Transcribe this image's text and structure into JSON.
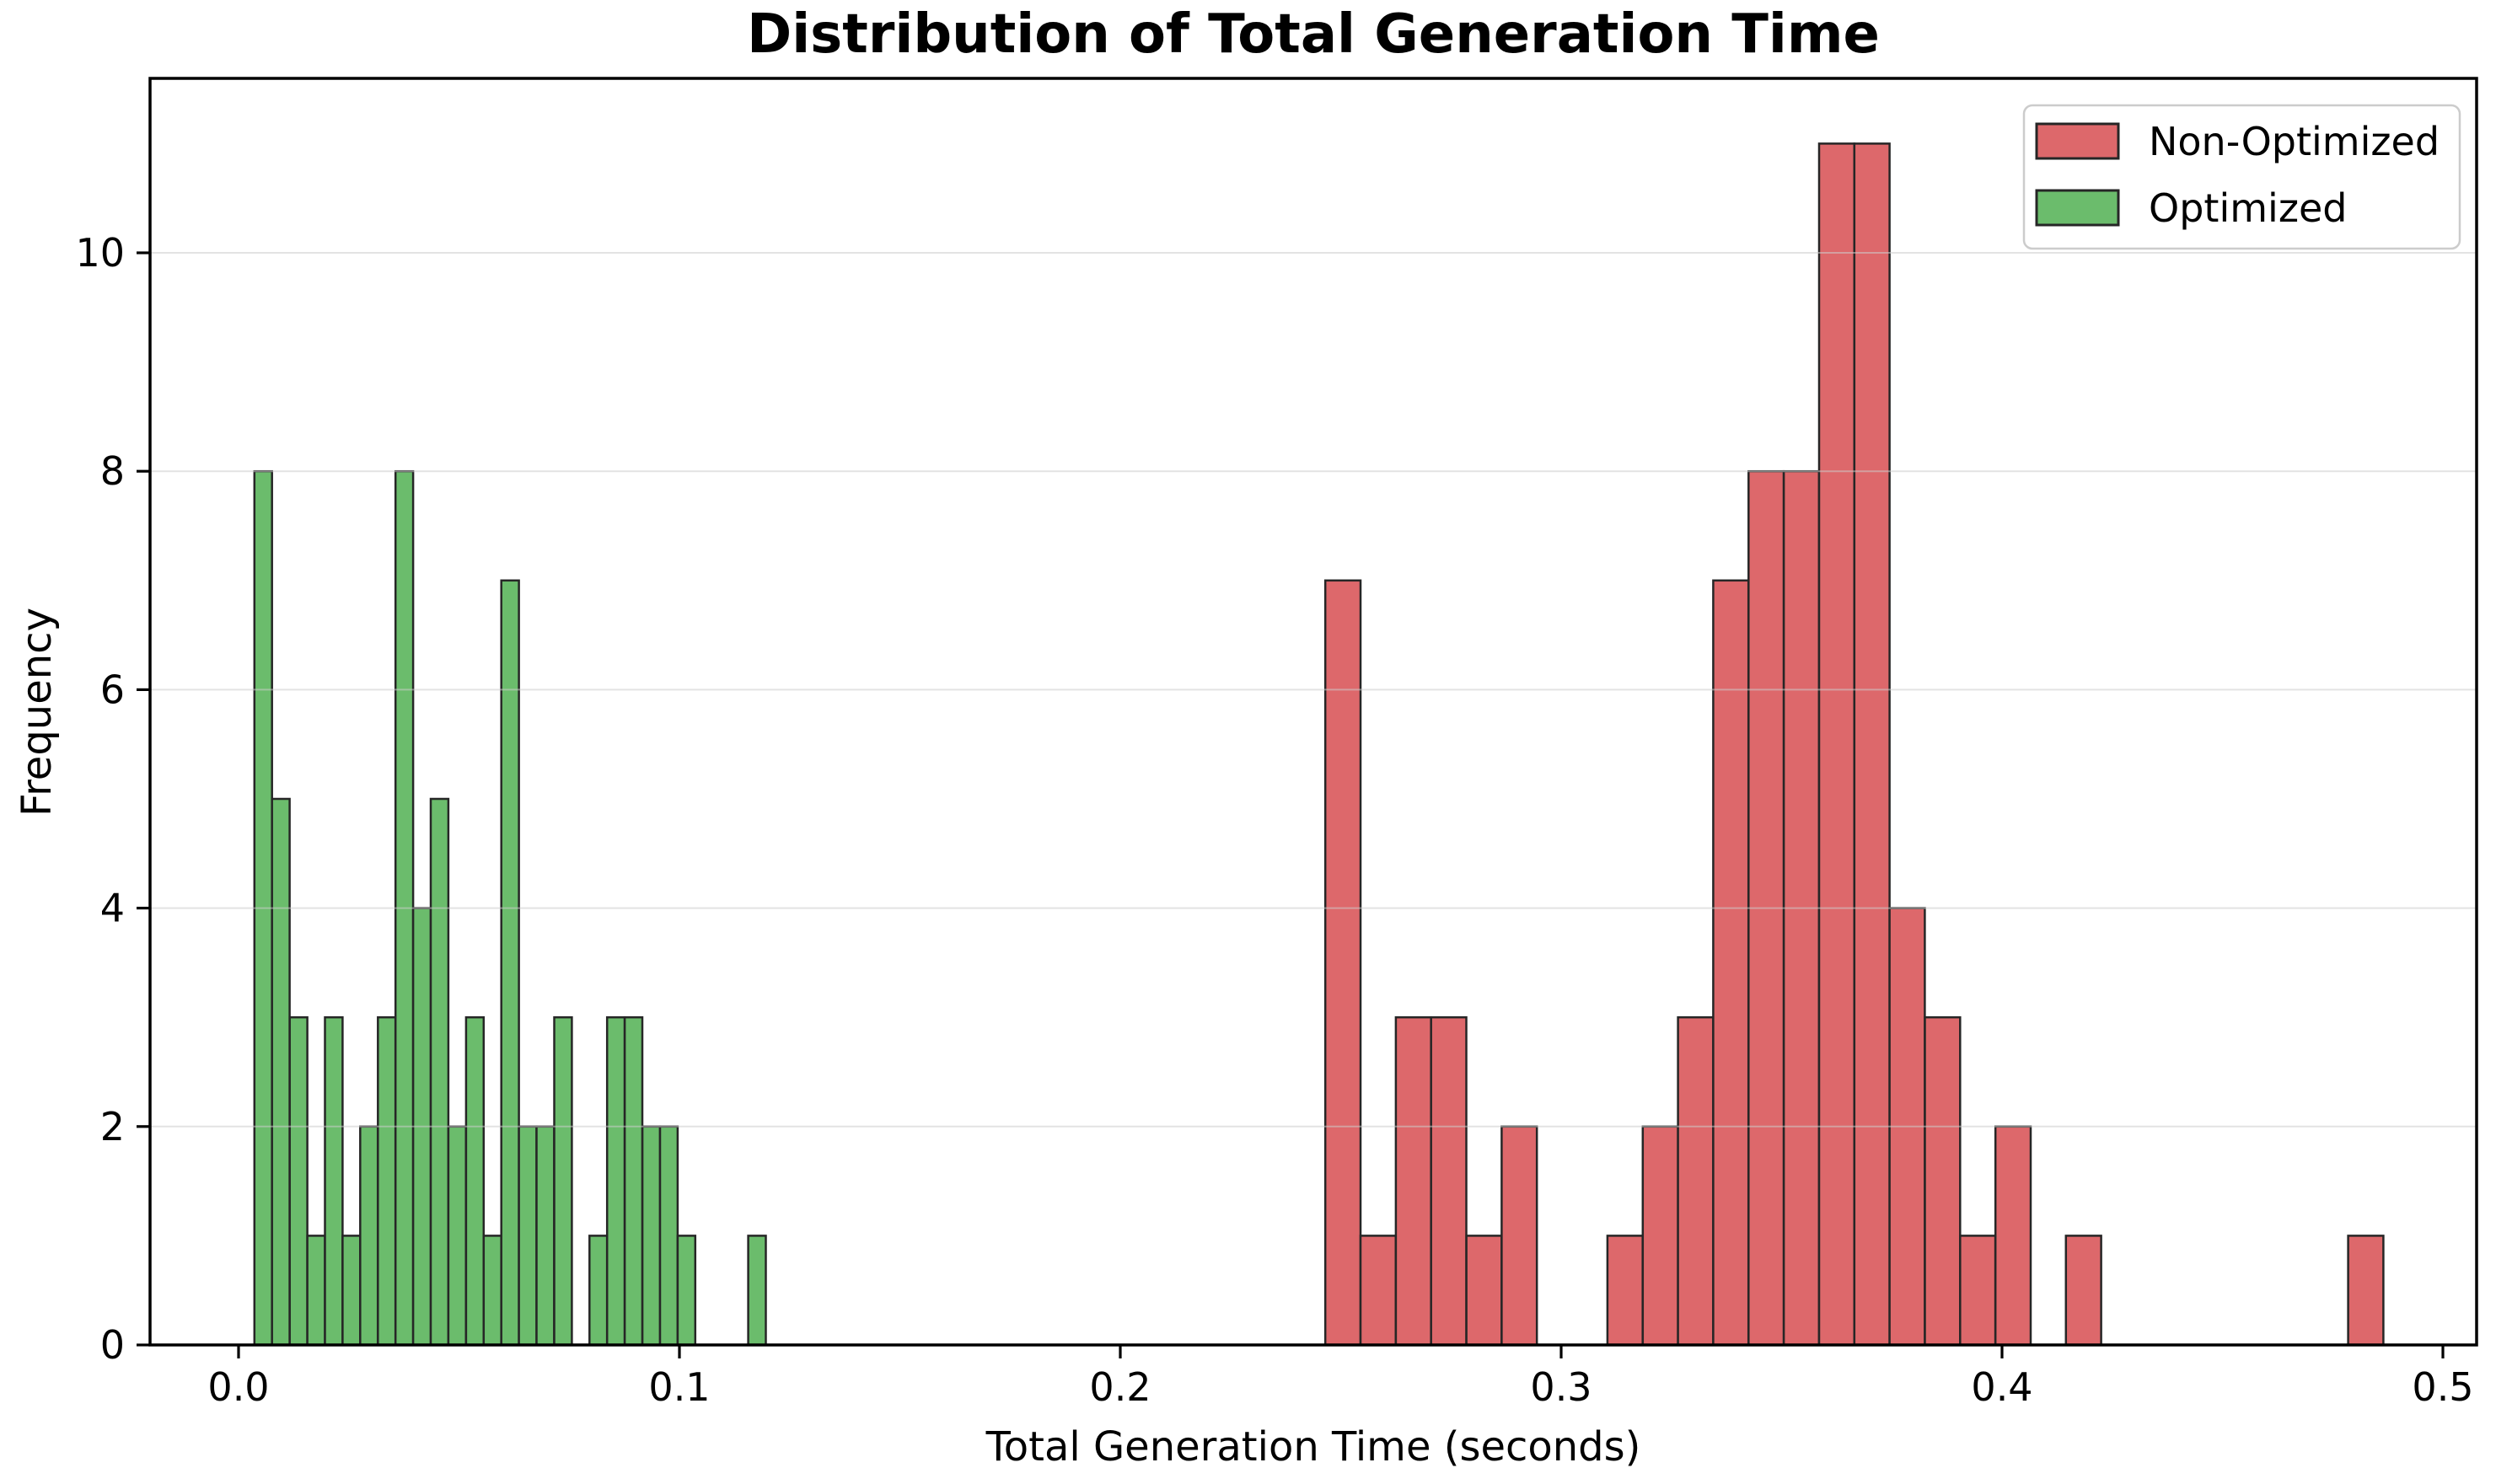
{
  "chart_data": {
    "type": "histogram",
    "title": "Distribution of Total Generation Time",
    "xlabel": "Total Generation Time (seconds)",
    "ylabel": "Frequency",
    "xlim": [
      -0.02,
      0.508
    ],
    "ylim": [
      0,
      11.6
    ],
    "xticks": [
      0.0,
      0.1,
      0.2,
      0.3,
      0.4,
      0.5
    ],
    "xtick_labels": [
      "0.0",
      "0.1",
      "0.2",
      "0.3",
      "0.4",
      "0.5"
    ],
    "yticks": [
      0,
      2,
      4,
      6,
      8,
      10
    ],
    "ytick_labels": [
      "0",
      "2",
      "4",
      "6",
      "8",
      "10"
    ],
    "grid": {
      "axis": "y",
      "color": "#cccccc",
      "opacity": 0.55,
      "drawn_above_bars": true
    },
    "legend": {
      "position": "upper-right",
      "border_color": "#cccccc",
      "background": "#ffffff",
      "entries": [
        {
          "label": "Non-Optimized",
          "color": "#dd686b"
        },
        {
          "label": "Optimized",
          "color": "#6bbc6c"
        }
      ]
    },
    "series": [
      {
        "name": "Non-Optimized",
        "color": "#dd686b",
        "edge_color": "#262626",
        "bin_start": 0.2465,
        "bin_width": 0.008,
        "counts": [
          7,
          1,
          3,
          3,
          1,
          2,
          0,
          0,
          1,
          2,
          3,
          7,
          8,
          8,
          11,
          11,
          4,
          3,
          1,
          2,
          0,
          1,
          0,
          0,
          0,
          0,
          0,
          0,
          0,
          1
        ]
      },
      {
        "name": "Optimized",
        "color": "#6bbc6c",
        "edge_color": "#262626",
        "bin_start": 0.0036,
        "bin_width": 0.004,
        "counts": [
          8,
          5,
          3,
          1,
          3,
          1,
          2,
          3,
          8,
          4,
          5,
          2,
          3,
          1,
          7,
          2,
          2,
          3,
          0,
          1,
          3,
          3,
          2,
          2,
          1,
          0,
          0,
          0,
          1
        ]
      }
    ]
  }
}
